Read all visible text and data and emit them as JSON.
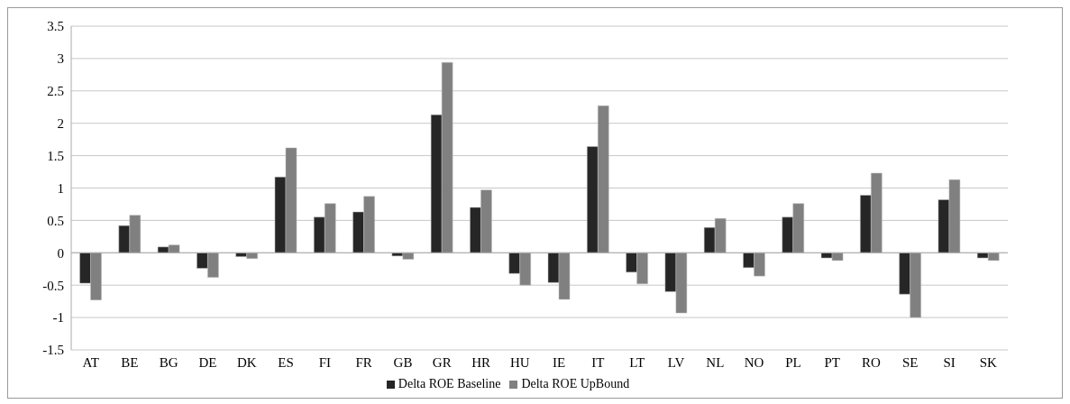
{
  "chart_data": {
    "type": "bar",
    "categories": [
      "AT",
      "BE",
      "BG",
      "DE",
      "DK",
      "ES",
      "FI",
      "FR",
      "GB",
      "GR",
      "HR",
      "HU",
      "IE",
      "IT",
      "LT",
      "LV",
      "NL",
      "NO",
      "PL",
      "PT",
      "RO",
      "SE",
      "SI",
      "SK"
    ],
    "series": [
      {
        "name": "Delta ROE Baseline",
        "color": "#262626",
        "values": [
          -0.47,
          0.42,
          0.09,
          -0.24,
          -0.06,
          1.17,
          0.55,
          0.63,
          -0.05,
          2.13,
          0.7,
          -0.32,
          -0.46,
          1.64,
          -0.3,
          -0.6,
          0.39,
          -0.23,
          0.55,
          -0.08,
          0.89,
          -0.64,
          0.82,
          -0.08
        ]
      },
      {
        "name": "Delta ROE UpBound",
        "color": "#808080",
        "values": [
          -0.73,
          0.58,
          0.12,
          -0.38,
          -0.09,
          1.62,
          0.76,
          0.87,
          -0.1,
          2.94,
          0.97,
          -0.5,
          -0.72,
          2.27,
          -0.48,
          -0.93,
          0.53,
          -0.36,
          0.76,
          -0.12,
          1.23,
          -1.0,
          1.13,
          -0.12
        ]
      }
    ],
    "ylim": [
      -1.5,
      3.5
    ],
    "yticks": [
      -1.5,
      -1,
      -0.5,
      0,
      0.5,
      1,
      1.5,
      2,
      2.5,
      3,
      3.5
    ],
    "grid": "y",
    "legend": "bottom"
  }
}
